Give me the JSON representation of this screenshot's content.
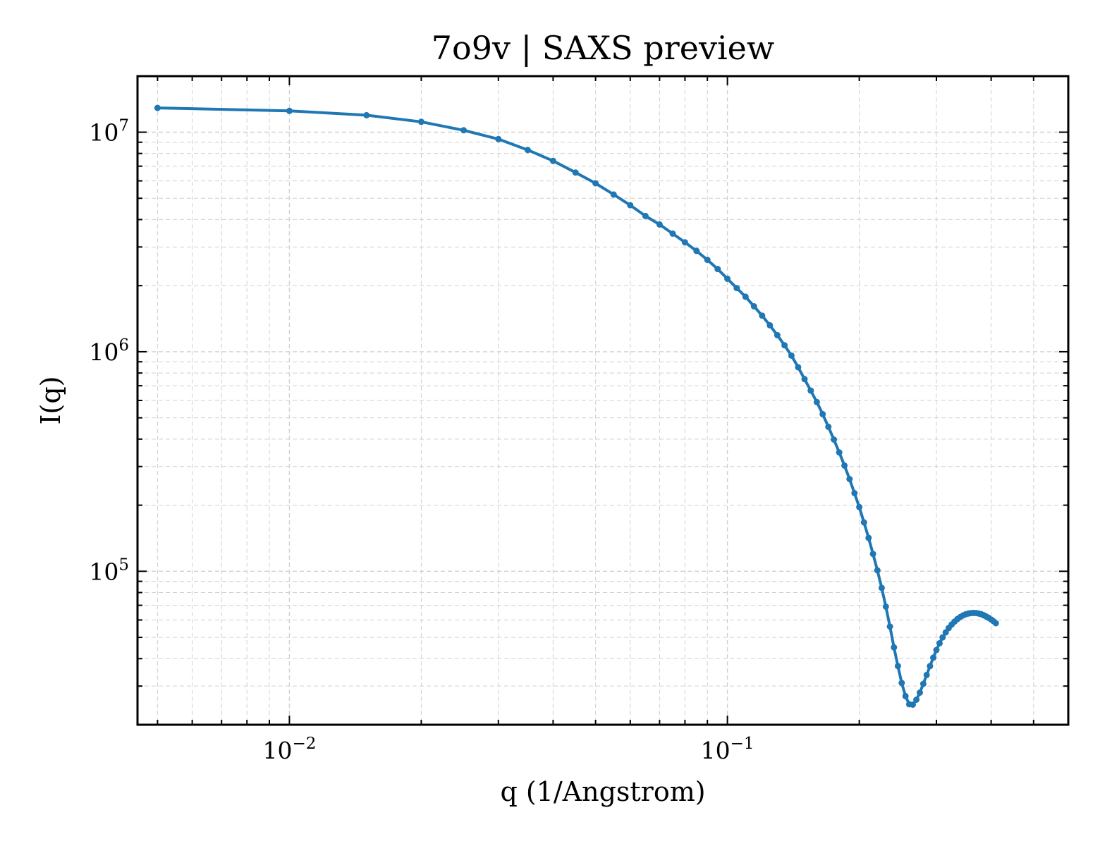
{
  "chart_data": {
    "type": "line",
    "title": "7o9v | SAXS preview",
    "xlabel": "q (1/Angstrom)",
    "ylabel": "I(q)",
    "xscale": "log",
    "yscale": "log",
    "xlim": [
      0.0045,
      0.6
    ],
    "ylim": [
      20000,
      18000000
    ],
    "grid": true,
    "legend": "none",
    "line_color": "#1f77b4",
    "x_ticks": [
      {
        "base": "10",
        "exp": "−2",
        "value": 0.01
      },
      {
        "base": "10",
        "exp": "−1",
        "value": 0.1
      }
    ],
    "y_ticks": [
      {
        "base": "10",
        "exp": "5",
        "value": 100000
      },
      {
        "base": "10",
        "exp": "6",
        "value": 1000000
      },
      {
        "base": "10",
        "exp": "7",
        "value": 10000000
      }
    ],
    "series": [
      {
        "marker": "circle",
        "points": [
          [
            0.005,
            12900000
          ],
          [
            0.01,
            12500000
          ],
          [
            0.015,
            11950000
          ],
          [
            0.02,
            11150000
          ],
          [
            0.025,
            10200000
          ],
          [
            0.03,
            9300000
          ],
          [
            0.035,
            8300000
          ],
          [
            0.04,
            7400000
          ],
          [
            0.045,
            6550000
          ],
          [
            0.05,
            5850000
          ],
          [
            0.055,
            5200000
          ],
          [
            0.06,
            4650000
          ],
          [
            0.065,
            4150000
          ],
          [
            0.07,
            3800000
          ],
          [
            0.075,
            3450000
          ],
          [
            0.08,
            3150000
          ],
          [
            0.085,
            2880000
          ],
          [
            0.09,
            2620000
          ],
          [
            0.095,
            2380000
          ],
          [
            0.1,
            2150000
          ],
          [
            0.105,
            1950000
          ],
          [
            0.11,
            1780000
          ],
          [
            0.115,
            1610000
          ],
          [
            0.12,
            1460000
          ],
          [
            0.125,
            1320000
          ],
          [
            0.13,
            1190000
          ],
          [
            0.135,
            1070000
          ],
          [
            0.14,
            960000
          ],
          [
            0.145,
            850000
          ],
          [
            0.15,
            750000
          ],
          [
            0.155,
            665000
          ],
          [
            0.16,
            590000
          ],
          [
            0.165,
            520000
          ],
          [
            0.17,
            455000
          ],
          [
            0.175,
            398000
          ],
          [
            0.18,
            348000
          ],
          [
            0.185,
            303000
          ],
          [
            0.19,
            263000
          ],
          [
            0.195,
            227000
          ],
          [
            0.2,
            196000
          ],
          [
            0.205,
            167000
          ],
          [
            0.21,
            142000
          ],
          [
            0.215,
            120000
          ],
          [
            0.22,
            101000
          ],
          [
            0.225,
            84000
          ],
          [
            0.23,
            69000
          ],
          [
            0.235,
            56000
          ],
          [
            0.24,
            45000
          ],
          [
            0.245,
            37000
          ],
          [
            0.25,
            31000
          ],
          [
            0.255,
            27000
          ],
          [
            0.26,
            24800
          ],
          [
            0.265,
            24700
          ],
          [
            0.27,
            26000
          ],
          [
            0.275,
            28000
          ],
          [
            0.28,
            30700
          ],
          [
            0.285,
            33700
          ],
          [
            0.29,
            37000
          ],
          [
            0.295,
            40400
          ],
          [
            0.3,
            43800
          ],
          [
            0.305,
            47000
          ],
          [
            0.31,
            50000
          ],
          [
            0.315,
            52700
          ],
          [
            0.32,
            55100
          ],
          [
            0.325,
            57200
          ],
          [
            0.33,
            59000
          ],
          [
            0.335,
            60600
          ],
          [
            0.34,
            61900
          ],
          [
            0.345,
            62900
          ],
          [
            0.35,
            63700
          ],
          [
            0.355,
            64200
          ],
          [
            0.36,
            64500
          ],
          [
            0.365,
            64600
          ],
          [
            0.37,
            64500
          ],
          [
            0.375,
            64200
          ],
          [
            0.38,
            63700
          ],
          [
            0.385,
            63000
          ],
          [
            0.39,
            62200
          ],
          [
            0.395,
            61300
          ],
          [
            0.4,
            60300
          ],
          [
            0.405,
            59200
          ],
          [
            0.41,
            58000
          ]
        ]
      }
    ]
  }
}
